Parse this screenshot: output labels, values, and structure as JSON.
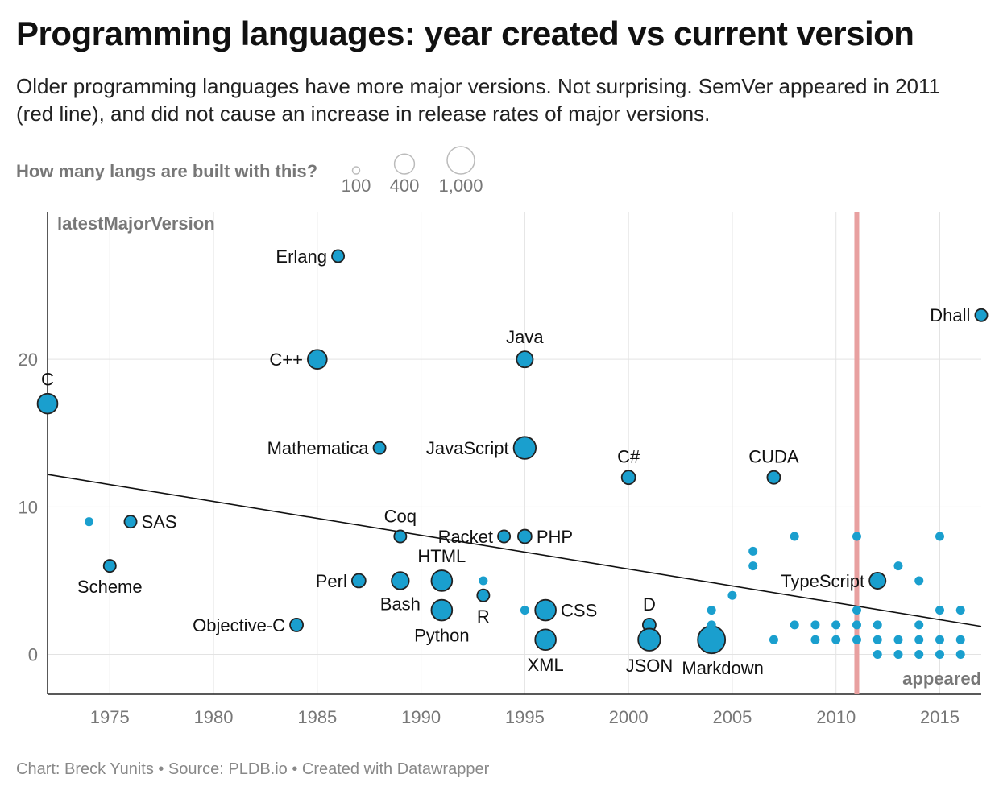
{
  "title": "Programming languages: year created vs current version",
  "subtitle": "Older programming languages have more major versions. Not surprising. SemVer appeared in 2011 (red line), and did not cause an increase in release rates of major versions.",
  "size_legend": {
    "label": "How many langs are built with this?",
    "items": [
      {
        "value": 100,
        "label": "100"
      },
      {
        "value": 400,
        "label": "400"
      },
      {
        "value": 1000,
        "label": "1,000"
      }
    ]
  },
  "footer": "Chart: Breck Yunits • Source: PLDB.io • Created with Datawrapper",
  "chart_data": {
    "type": "scatter",
    "xlabel": "appeared",
    "ylabel": "latestMajorVersion",
    "xlim": [
      1972,
      2017
    ],
    "ylim": [
      -2.7,
      30
    ],
    "x_ticks": [
      1975,
      1980,
      1985,
      1990,
      1995,
      2000,
      2005,
      2010,
      2015
    ],
    "y_ticks": [
      0,
      10,
      20
    ],
    "grid": true,
    "colors": {
      "point": "#1a9fce",
      "outline": "#222222",
      "semver_line": "#e8a0a0",
      "trend": "#111111"
    },
    "reference_line": {
      "x": 2011,
      "color": "#e8a0a0"
    },
    "trend_line": {
      "x": [
        1972,
        2017
      ],
      "y": [
        12.2,
        1.9
      ]
    },
    "points": [
      {
        "name": "C",
        "x": 1972,
        "y": 17,
        "size": 400,
        "outlined": true,
        "label_pos": "above"
      },
      {
        "name": "",
        "x": 1974,
        "y": 9,
        "size": 60,
        "outlined": false
      },
      {
        "name": "Scheme",
        "x": 1975,
        "y": 6,
        "size": 60,
        "outlined": true,
        "label_pos": "below"
      },
      {
        "name": "SAS",
        "x": 1976,
        "y": 9,
        "size": 60,
        "outlined": true,
        "label_pos": "right"
      },
      {
        "name": "Objective-C",
        "x": 1984,
        "y": 2,
        "size": 80,
        "outlined": true,
        "label_pos": "left"
      },
      {
        "name": "C++",
        "x": 1985,
        "y": 20,
        "size": 350,
        "outlined": true,
        "label_pos": "left"
      },
      {
        "name": "Erlang",
        "x": 1986,
        "y": 27,
        "size": 60,
        "outlined": true,
        "label_pos": "left"
      },
      {
        "name": "Perl",
        "x": 1987,
        "y": 5,
        "size": 100,
        "outlined": true,
        "label_pos": "left"
      },
      {
        "name": "Mathematica",
        "x": 1988,
        "y": 14,
        "size": 60,
        "outlined": true,
        "label_pos": "left"
      },
      {
        "name": "Coq",
        "x": 1989,
        "y": 8,
        "size": 60,
        "outlined": true,
        "label_pos": "above"
      },
      {
        "name": "Bash",
        "x": 1989,
        "y": 5,
        "size": 250,
        "outlined": true,
        "label_pos": "below"
      },
      {
        "name": "HTML",
        "x": 1991,
        "y": 5,
        "size": 450,
        "outlined": true,
        "label_pos": "above"
      },
      {
        "name": "Python",
        "x": 1991,
        "y": 3,
        "size": 450,
        "outlined": true,
        "label_pos": "below"
      },
      {
        "name": "",
        "x": 1993,
        "y": 5,
        "size": 60,
        "outlined": false
      },
      {
        "name": "R",
        "x": 1993,
        "y": 4,
        "size": 60,
        "outlined": true,
        "label_pos": "below"
      },
      {
        "name": "Racket",
        "x": 1994,
        "y": 8,
        "size": 60,
        "outlined": true,
        "label_pos": "left"
      },
      {
        "name": "Java",
        "x": 1995,
        "y": 20,
        "size": 200,
        "outlined": true,
        "label_pos": "above"
      },
      {
        "name": "JavaScript",
        "x": 1995,
        "y": 14,
        "size": 550,
        "outlined": true,
        "label_pos": "left"
      },
      {
        "name": "PHP",
        "x": 1995,
        "y": 8,
        "size": 100,
        "outlined": true,
        "label_pos": "right"
      },
      {
        "name": "",
        "x": 1995,
        "y": 3,
        "size": 60,
        "outlined": false
      },
      {
        "name": "CSS",
        "x": 1996,
        "y": 3,
        "size": 450,
        "outlined": true,
        "label_pos": "right"
      },
      {
        "name": "XML",
        "x": 1996,
        "y": 1,
        "size": 450,
        "outlined": true,
        "label_pos": "below"
      },
      {
        "name": "C#",
        "x": 2000,
        "y": 12,
        "size": 100,
        "outlined": true,
        "label_pos": "above"
      },
      {
        "name": "D",
        "x": 2001,
        "y": 2,
        "size": 80,
        "outlined": true,
        "label_pos": "above"
      },
      {
        "name": "JSON",
        "x": 2001,
        "y": 1,
        "size": 550,
        "outlined": true,
        "label_pos": "below"
      },
      {
        "name": "Markdown",
        "x": 2004,
        "y": 1,
        "size": 1000,
        "outlined": true,
        "label_pos": "below-right"
      },
      {
        "name": "",
        "x": 2004,
        "y": 3,
        "size": 50,
        "outlined": false
      },
      {
        "name": "",
        "x": 2004,
        "y": 2,
        "size": 50,
        "outlined": false
      },
      {
        "name": "",
        "x": 2005,
        "y": 4,
        "size": 50,
        "outlined": false
      },
      {
        "name": "",
        "x": 2006,
        "y": 7,
        "size": 60,
        "outlined": false
      },
      {
        "name": "",
        "x": 2006,
        "y": 6,
        "size": 50,
        "outlined": false
      },
      {
        "name": "CUDA",
        "x": 2007,
        "y": 12,
        "size": 80,
        "outlined": true,
        "label_pos": "above"
      },
      {
        "name": "",
        "x": 2007,
        "y": 1,
        "size": 50,
        "outlined": false
      },
      {
        "name": "",
        "x": 2008,
        "y": 8,
        "size": 60,
        "outlined": false
      },
      {
        "name": "",
        "x": 2008,
        "y": 2,
        "size": 50,
        "outlined": false
      },
      {
        "name": "",
        "x": 2009,
        "y": 2,
        "size": 50,
        "outlined": false
      },
      {
        "name": "",
        "x": 2009,
        "y": 1,
        "size": 80,
        "outlined": false
      },
      {
        "name": "",
        "x": 2010,
        "y": 2,
        "size": 50,
        "outlined": false
      },
      {
        "name": "",
        "x": 2010,
        "y": 1,
        "size": 80,
        "outlined": false
      },
      {
        "name": "",
        "x": 2011,
        "y": 8,
        "size": 50,
        "outlined": false
      },
      {
        "name": "",
        "x": 2011,
        "y": 3,
        "size": 50,
        "outlined": false
      },
      {
        "name": "",
        "x": 2011,
        "y": 2,
        "size": 50,
        "outlined": false
      },
      {
        "name": "",
        "x": 2011,
        "y": 1,
        "size": 50,
        "outlined": false
      },
      {
        "name": "TypeScript",
        "x": 2012,
        "y": 5,
        "size": 200,
        "outlined": true,
        "label_pos": "left"
      },
      {
        "name": "",
        "x": 2012,
        "y": 2,
        "size": 50,
        "outlined": false
      },
      {
        "name": "",
        "x": 2012,
        "y": 1,
        "size": 50,
        "outlined": false
      },
      {
        "name": "",
        "x": 2012,
        "y": 0,
        "size": 50,
        "outlined": false
      },
      {
        "name": "",
        "x": 2013,
        "y": 6,
        "size": 50,
        "outlined": false
      },
      {
        "name": "",
        "x": 2013,
        "y": 1,
        "size": 150,
        "outlined": false
      },
      {
        "name": "",
        "x": 2013,
        "y": 0,
        "size": 50,
        "outlined": false
      },
      {
        "name": "",
        "x": 2014,
        "y": 5,
        "size": 50,
        "outlined": false
      },
      {
        "name": "",
        "x": 2014,
        "y": 2,
        "size": 50,
        "outlined": false
      },
      {
        "name": "",
        "x": 2014,
        "y": 1,
        "size": 50,
        "outlined": false
      },
      {
        "name": "",
        "x": 2014,
        "y": 0,
        "size": 50,
        "outlined": false
      },
      {
        "name": "",
        "x": 2015,
        "y": 8,
        "size": 50,
        "outlined": false
      },
      {
        "name": "",
        "x": 2015,
        "y": 3,
        "size": 50,
        "outlined": false
      },
      {
        "name": "",
        "x": 2015,
        "y": 1,
        "size": 50,
        "outlined": false
      },
      {
        "name": "",
        "x": 2015,
        "y": 0,
        "size": 50,
        "outlined": false
      },
      {
        "name": "",
        "x": 2016,
        "y": 3,
        "size": 50,
        "outlined": false
      },
      {
        "name": "",
        "x": 2016,
        "y": 1,
        "size": 50,
        "outlined": false
      },
      {
        "name": "",
        "x": 2016,
        "y": 0,
        "size": 50,
        "outlined": false
      },
      {
        "name": "Dhall",
        "x": 2017,
        "y": 23,
        "size": 60,
        "outlined": true,
        "label_pos": "left"
      }
    ]
  }
}
